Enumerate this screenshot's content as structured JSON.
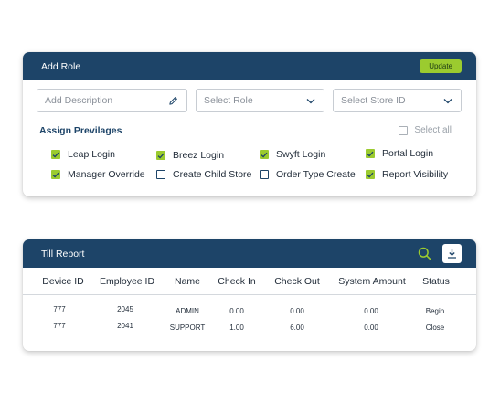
{
  "role_card": {
    "title": "Add Role",
    "update_label": "Update",
    "description_placeholder": "Add Description",
    "role_placeholder": "Select Role",
    "store_placeholder": "Select Store ID",
    "privileges_heading": "Assign Previlages",
    "select_all_label": "Select all",
    "select_all_checked": false,
    "privileges": [
      {
        "label": "Leap Login",
        "checked": true
      },
      {
        "label": "Breez Login",
        "checked": true
      },
      {
        "label": "Swyft Login",
        "checked": true
      },
      {
        "label": "Portal Login",
        "checked": true
      },
      {
        "label": "Manager Override",
        "checked": true
      },
      {
        "label": "Create Child Store",
        "checked": false
      },
      {
        "label": "Order Type Create",
        "checked": false
      },
      {
        "label": "Report Visibility",
        "checked": true
      }
    ]
  },
  "till_card": {
    "title": "Till Report",
    "search_icon": "search-icon",
    "download_icon": "download-icon",
    "columns": [
      "Device ID",
      "Employee ID",
      "Name",
      "Check In",
      "Check Out",
      "System Amount",
      "Status"
    ],
    "rows": [
      [
        "777",
        "2045",
        "ADMIN",
        "0.00",
        "0.00",
        "0.00",
        "Begin"
      ],
      [
        "777",
        "2041",
        "SUPPORT",
        "1.00",
        "6.00",
        "0.00",
        "Close"
      ]
    ]
  },
  "colors": {
    "header": "#1d4468",
    "accent": "#9bcb2f",
    "search_icon": "#9bcb2f"
  }
}
